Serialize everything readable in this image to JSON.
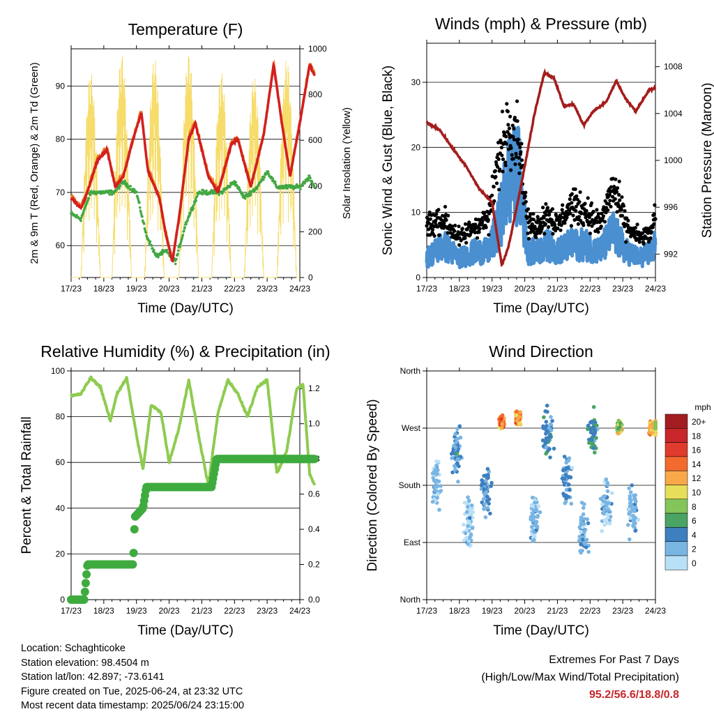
{
  "x_ticks": [
    "17/23",
    "18/23",
    "19/23",
    "20/23",
    "21/23",
    "22/23",
    "23/23",
    "24/23"
  ],
  "x_label": "Time (Day/UTC)",
  "panels": {
    "temp": {
      "title": "Temperature (F)",
      "ylabel_left": "2m & 9m T (Red, Orange) & 2m Td (Green)",
      "ylabel_right": "Solar Insolation (Yellow)",
      "left_ticks": [
        "60",
        "70",
        "80",
        "90"
      ],
      "right_ticks": [
        "0",
        "200",
        "400",
        "600",
        "800",
        "1000"
      ]
    },
    "wind": {
      "title": "Winds (mph) & Pressure (mb)",
      "ylabel_left": "Sonic Wind & Gust (Blue, Black)",
      "ylabel_right": "Station Pressure (Maroon)",
      "left_ticks": [
        "0",
        "10",
        "20",
        "30"
      ],
      "right_ticks": [
        "992",
        "996",
        "1000",
        "1004",
        "1008"
      ]
    },
    "rh": {
      "title": "Relative Humidity (%) & Precipitation (in)",
      "ylabel_left": "Percent & Total Rainfall",
      "left_ticks": [
        "0",
        "20",
        "40",
        "60",
        "80",
        "100"
      ],
      "right_ticks": [
        "0.0",
        "0.2",
        "0.4",
        "0.6",
        "0.8",
        "1.0",
        "1.2"
      ]
    },
    "dir": {
      "title": "Wind Direction",
      "ylabel_left": "Direction (Colored By Speed)",
      "left_ticks": [
        "North",
        "East",
        "South",
        "West",
        "North"
      ],
      "legend_title": "mph",
      "legend_labels": [
        "20+",
        "18",
        "16",
        "14",
        "12",
        "10",
        "8",
        "6",
        "4",
        "2",
        "0"
      ],
      "legend_colors": [
        "#a21d21",
        "#c8262a",
        "#e03b2c",
        "#f26a2e",
        "#f9a849",
        "#e7df5a",
        "#84c55a",
        "#4aa463",
        "#3d7fbf",
        "#79b5e3",
        "#b8e0f6"
      ]
    }
  },
  "info": {
    "location": "Location: Schaghticoke",
    "elevation": "Station elevation: 98.4504 m",
    "latlon": "Station lat/lon: 42.897; -73.6141",
    "created": "Figure created on Tue, 2025-06-24, at 23:32 UTC",
    "recent": "Most recent data timestamp: 2025/06/24 23:15:00"
  },
  "extremes": {
    "line1": "Extremes For Past 7 Days",
    "line2": "(High/Low/Max Wind/Total Precipitation)",
    "values": "95.2/56.6/18.8/0.8"
  },
  "chart_data": [
    {
      "type": "line",
      "title": "Temperature (F)",
      "x": [
        "17/23",
        "18/23",
        "19/23",
        "20/23",
        "21/23",
        "22/23",
        "23/23",
        "24/23"
      ],
      "ylim": [
        54,
        97
      ],
      "y2lim": [
        0,
        1000
      ],
      "series": [
        {
          "name": "2m T",
          "color": "#d21f1f",
          "axis": "left",
          "points": [
            [
              0,
              69
            ],
            [
              0.3,
              67
            ],
            [
              0.5,
              70
            ],
            [
              0.8,
              76
            ],
            [
              1.1,
              78
            ],
            [
              1.35,
              71
            ],
            [
              1.6,
              73
            ],
            [
              1.9,
              80
            ],
            [
              2.15,
              85
            ],
            [
              2.35,
              74
            ],
            [
              2.7,
              69
            ],
            [
              2.9,
              62
            ],
            [
              3.1,
              57
            ],
            [
              3.3,
              65
            ],
            [
              3.6,
              80
            ],
            [
              3.8,
              83
            ],
            [
              4.2,
              73
            ],
            [
              4.5,
              70
            ],
            [
              4.9,
              79
            ],
            [
              5.1,
              80
            ],
            [
              5.5,
              71
            ],
            [
              5.9,
              81
            ],
            [
              6.2,
              94
            ],
            [
              6.45,
              83
            ],
            [
              6.7,
              73
            ],
            [
              7.0,
              83
            ],
            [
              7.3,
              94
            ],
            [
              7.45,
              92
            ]
          ]
        },
        {
          "name": "2m Td",
          "color": "#43a843",
          "axis": "left",
          "points": [
            [
              0,
              66
            ],
            [
              0.3,
              65
            ],
            [
              0.6,
              70
            ],
            [
              1.0,
              70
            ],
            [
              1.3,
              70
            ],
            [
              1.6,
              72
            ],
            [
              1.8,
              71
            ],
            [
              2.0,
              70
            ],
            [
              2.3,
              62
            ],
            [
              2.6,
              58
            ],
            [
              2.9,
              59
            ],
            [
              3.2,
              57
            ],
            [
              3.5,
              64
            ],
            [
              3.9,
              70
            ],
            [
              4.3,
              70
            ],
            [
              4.6,
              70
            ],
            [
              5.0,
              72
            ],
            [
              5.3,
              69
            ],
            [
              5.7,
              71
            ],
            [
              6.0,
              74
            ],
            [
              6.3,
              71
            ],
            [
              6.6,
              71
            ],
            [
              7.0,
              71
            ],
            [
              7.3,
              73
            ],
            [
              7.45,
              71
            ]
          ]
        },
        {
          "name": "Solar Insolation",
          "color": "#f6dc6a",
          "axis": "right",
          "peaks": [
            [
              0.6,
              900
            ],
            [
              1.55,
              980
            ],
            [
              2.55,
              960
            ],
            [
              3.6,
              980
            ],
            [
              4.6,
              900
            ],
            [
              5.6,
              880
            ],
            [
              6.6,
              960
            ],
            [
              7.3,
              960
            ]
          ]
        }
      ]
    },
    {
      "type": "scatter",
      "title": "Winds (mph) & Pressure (mb)",
      "x": [
        "17/23",
        "18/23",
        "19/23",
        "20/23",
        "21/23",
        "22/23",
        "23/23",
        "24/23"
      ],
      "ylim": [
        0,
        36
      ],
      "y2lim": [
        990,
        1010
      ],
      "series": [
        {
          "name": "Sonic Wind",
          "color": "#4a8fd0",
          "points": [
            [
              0,
              3
            ],
            [
              0.5,
              5
            ],
            [
              1.0,
              3
            ],
            [
              1.5,
              4
            ],
            [
              1.9,
              4
            ],
            [
              2.2,
              8
            ],
            [
              2.5,
              15
            ],
            [
              2.8,
              16
            ],
            [
              3.1,
              4
            ],
            [
              3.4,
              4
            ],
            [
              3.7,
              5
            ],
            [
              4.0,
              4
            ],
            [
              4.4,
              5
            ],
            [
              4.9,
              5
            ],
            [
              5.3,
              4
            ],
            [
              5.7,
              7
            ],
            [
              6.1,
              4
            ],
            [
              6.5,
              3
            ],
            [
              6.9,
              4
            ],
            [
              7.2,
              10
            ],
            [
              7.45,
              7
            ]
          ]
        },
        {
          "name": "Gust",
          "color": "#000000",
          "points": [
            [
              0,
              8
            ],
            [
              0.5,
              9
            ],
            [
              1.0,
              6
            ],
            [
              1.5,
              8
            ],
            [
              1.9,
              9
            ],
            [
              2.2,
              18
            ],
            [
              2.5,
              24
            ],
            [
              2.8,
              22
            ],
            [
              3.1,
              8
            ],
            [
              3.4,
              8
            ],
            [
              3.7,
              10
            ],
            [
              4.0,
              8
            ],
            [
              4.4,
              11
            ],
            [
              4.9,
              10
            ],
            [
              5.3,
              8
            ],
            [
              5.7,
              14
            ],
            [
              6.1,
              8
            ],
            [
              6.5,
              6
            ],
            [
              6.9,
              7
            ],
            [
              7.2,
              16
            ],
            [
              7.45,
              13
            ]
          ]
        },
        {
          "name": "Station Pressure",
          "color": "#a41d1d",
          "points": [
            [
              0,
              1003.2
            ],
            [
              0.4,
              1002.6
            ],
            [
              0.8,
              1001.0
            ],
            [
              1.2,
              999.5
            ],
            [
              1.6,
              997.6
            ],
            [
              2.0,
              996.4
            ],
            [
              2.3,
              991.0
            ],
            [
              2.5,
              992.6
            ],
            [
              2.9,
              998.0
            ],
            [
              3.3,
              1004.0
            ],
            [
              3.6,
              1007.5
            ],
            [
              3.9,
              1007.0
            ],
            [
              4.2,
              1004.6
            ],
            [
              4.5,
              1004.8
            ],
            [
              4.8,
              1003.0
            ],
            [
              5.1,
              1004.2
            ],
            [
              5.5,
              1005.0
            ],
            [
              5.8,
              1006.8
            ],
            [
              6.1,
              1005.2
            ],
            [
              6.4,
              1004.2
            ],
            [
              6.8,
              1006.0
            ],
            [
              7.0,
              1006.2
            ],
            [
              7.25,
              1005.0
            ],
            [
              7.45,
              1003.8
            ]
          ]
        }
      ]
    },
    {
      "type": "line",
      "title": "Relative Humidity (%) & Precipitation (in)",
      "x": [
        "17/23",
        "18/23",
        "19/23",
        "20/23",
        "21/23",
        "22/23",
        "23/23",
        "24/23"
      ],
      "ylim": [
        0,
        100
      ],
      "y2lim": [
        0,
        1.3
      ],
      "series": [
        {
          "name": "Relative Humidity",
          "color": "#8ecb4f",
          "points": [
            [
              0,
              89
            ],
            [
              0.3,
              90
            ],
            [
              0.6,
              97
            ],
            [
              0.9,
              93
            ],
            [
              1.2,
              78
            ],
            [
              1.4,
              90
            ],
            [
              1.7,
              97
            ],
            [
              2.0,
              72
            ],
            [
              2.2,
              57
            ],
            [
              2.45,
              85
            ],
            [
              2.75,
              82
            ],
            [
              3.0,
              60
            ],
            [
              3.3,
              75
            ],
            [
              3.6,
              96
            ],
            [
              3.9,
              72
            ],
            [
              4.2,
              50
            ],
            [
              4.5,
              82
            ],
            [
              4.8,
              96
            ],
            [
              5.1,
              90
            ],
            [
              5.4,
              80
            ],
            [
              5.7,
              93
            ],
            [
              6.0,
              96
            ],
            [
              6.3,
              55
            ],
            [
              6.6,
              65
            ],
            [
              6.9,
              92
            ],
            [
              7.1,
              94
            ],
            [
              7.3,
              55
            ],
            [
              7.45,
              50
            ]
          ]
        },
        {
          "name": "Total Rainfall",
          "color": "#3fab3f",
          "points": [
            [
              0,
              0
            ],
            [
              0.4,
              0
            ],
            [
              0.5,
              0.2
            ],
            [
              1.0,
              0.2
            ],
            [
              1.9,
              0.2
            ],
            [
              1.95,
              0.47
            ],
            [
              2.2,
              0.52
            ],
            [
              2.3,
              0.64
            ],
            [
              3.8,
              0.64
            ],
            [
              4.3,
              0.64
            ],
            [
              4.45,
              0.8
            ],
            [
              7.45,
              0.8
            ]
          ]
        }
      ]
    },
    {
      "type": "scatter",
      "title": "Wind Direction",
      "x": [
        "17/23",
        "18/23",
        "19/23",
        "20/23",
        "21/23",
        "22/23",
        "23/23",
        "24/23"
      ],
      "y_categories": [
        "North",
        "East",
        "South",
        "West",
        "North"
      ],
      "ylim": [
        0,
        360
      ],
      "color_scale": "mph 0 to 20+",
      "clusters": [
        [
          0.3,
          180,
          2
        ],
        [
          0.9,
          230,
          3
        ],
        [
          1.3,
          120,
          1
        ],
        [
          1.8,
          170,
          3
        ],
        [
          2.3,
          280,
          13
        ],
        [
          2.8,
          285,
          12
        ],
        [
          3.3,
          130,
          2
        ],
        [
          3.7,
          260,
          4
        ],
        [
          4.3,
          190,
          3
        ],
        [
          4.8,
          110,
          2
        ],
        [
          5.1,
          260,
          5
        ],
        [
          5.5,
          150,
          2
        ],
        [
          5.9,
          270,
          9
        ],
        [
          6.3,
          140,
          2
        ],
        [
          6.9,
          270,
          11
        ],
        [
          7.3,
          270,
          10
        ]
      ]
    }
  ]
}
